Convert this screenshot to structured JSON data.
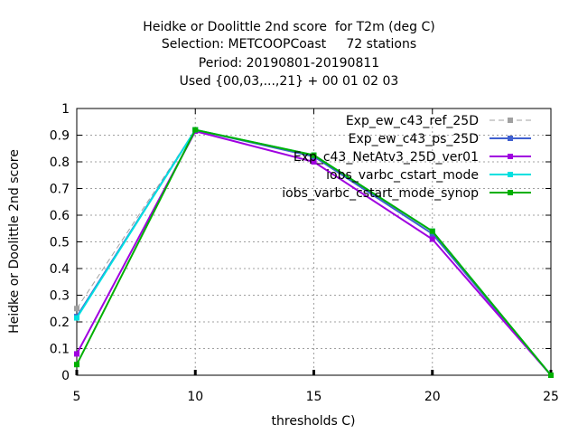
{
  "title_lines": [
    "Heidke or Doolittle 2nd score  for T2m (deg C)",
    "Selection: METCOOPCoast     72 stations",
    "Period: 20190801-20190811",
    "Used {00,03,...,21} + 00 01 02 03"
  ],
  "chart_data": {
    "type": "line",
    "title": "Heidke or Doolittle 2nd score  for T2m (deg C)",
    "xlabel": "thresholds C)",
    "ylabel": "Heidke or Doolittle 2nd score",
    "x": [
      5,
      10,
      15,
      20,
      25
    ],
    "xlim": [
      5,
      25
    ],
    "ylim": [
      0,
      1
    ],
    "xticks": [
      "5",
      "10",
      "15",
      "20",
      "25"
    ],
    "yticks": [
      "0",
      "0.1",
      "0.2",
      "0.3",
      "0.4",
      "0.5",
      "0.6",
      "0.7",
      "0.8",
      "0.9",
      "1"
    ],
    "grid": true,
    "legend_position": "top-right",
    "series": [
      {
        "name": "Exp_ew_c43_ref_25D",
        "color": "#a0a0a0",
        "dashed": true,
        "values": [
          0.25,
          0.92,
          0.82,
          0.53,
          0.0
        ]
      },
      {
        "name": "Exp_ew_c43_ps_25D",
        "color": "#4060d0",
        "dashed": false,
        "values": [
          0.22,
          0.92,
          0.82,
          0.53,
          0.0
        ]
      },
      {
        "name": "Exp_c43_NetAtv3_25D_ver01",
        "color": "#a000e0",
        "dashed": false,
        "values": [
          0.08,
          0.915,
          0.8,
          0.51,
          0.0
        ]
      },
      {
        "name": "iobs_varbc_cstart_mode",
        "color": "#00e0e0",
        "dashed": false,
        "values": [
          0.215,
          0.92,
          0.825,
          0.54,
          0.0
        ]
      },
      {
        "name": "iobs_varbc_cstart_mode_synop",
        "color": "#00b000",
        "dashed": false,
        "values": [
          0.04,
          0.92,
          0.825,
          0.54,
          0.0
        ]
      }
    ]
  }
}
